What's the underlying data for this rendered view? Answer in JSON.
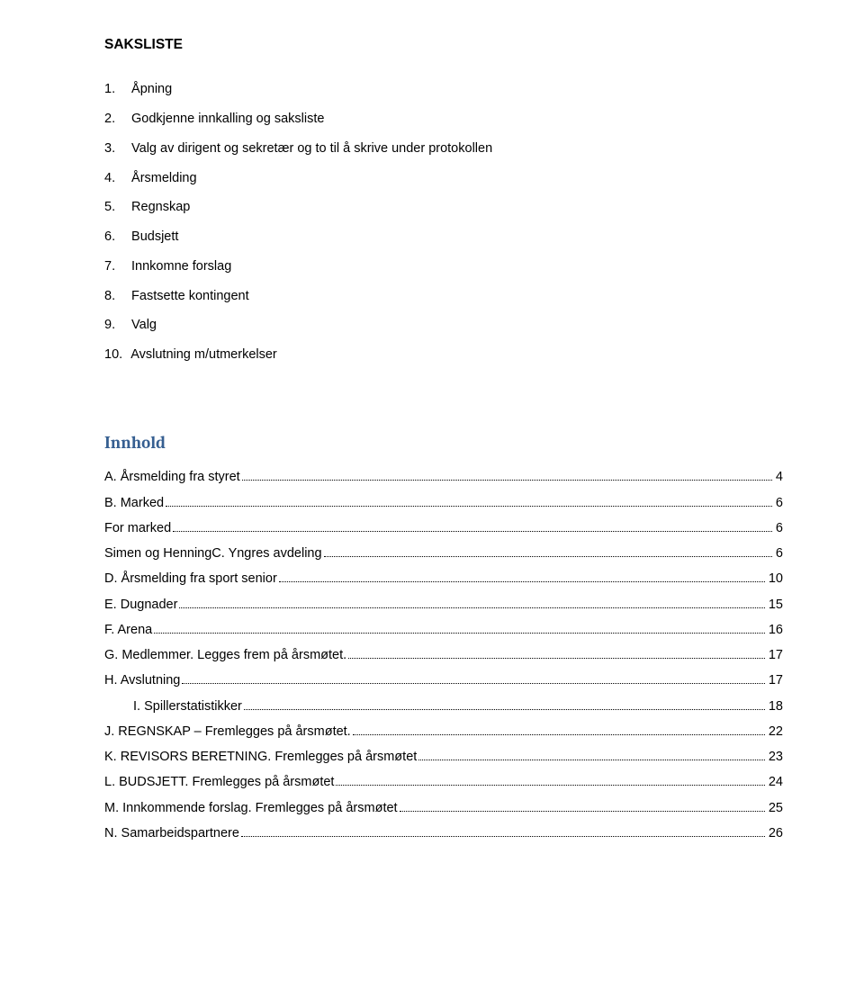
{
  "heading": "SAKSLISTE",
  "agenda": [
    {
      "num": "1.",
      "text": "Åpning"
    },
    {
      "num": "2.",
      "text": "Godkjenne innkalling og saksliste"
    },
    {
      "num": "3.",
      "text": "Valg av dirigent og sekretær og to til å skrive under protokollen"
    },
    {
      "num": "4.",
      "text": "Årsmelding"
    },
    {
      "num": "5.",
      "text": "Regnskap"
    },
    {
      "num": "6.",
      "text": "Budsjett"
    },
    {
      "num": "7.",
      "text": "Innkomne forslag"
    },
    {
      "num": "8.",
      "text": "Fastsette kontingent"
    },
    {
      "num": "9.",
      "text": "Valg"
    },
    {
      "num": "10.",
      "text": "Avslutning m/utmerkelser"
    }
  ],
  "innhold_title": "Innhold",
  "toc": [
    {
      "label": "A. Årsmelding fra styret",
      "page": "4",
      "indent": false
    },
    {
      "label": "B. Marked",
      "page": "6",
      "indent": false
    },
    {
      "label": "For marked",
      "page": "6",
      "indent": false
    },
    {
      "label": "Simen og HenningC. Yngres avdeling",
      "page": "6",
      "indent": false
    },
    {
      "label": "D. Årsmelding fra sport senior",
      "page": "10",
      "indent": false
    },
    {
      "label": "E. Dugnader",
      "page": "15",
      "indent": false
    },
    {
      "label": "F. Arena",
      "page": "16",
      "indent": false
    },
    {
      "label": "G. Medlemmer. Legges frem på årsmøtet.",
      "page": "17",
      "indent": false
    },
    {
      "label": "H. Avslutning",
      "page": "17",
      "indent": false
    },
    {
      "label": "I.    Spillerstatistikker",
      "page": "18",
      "indent": true
    },
    {
      "label": "J. REGNSKAP – Fremlegges på årsmøtet.",
      "page": "22",
      "indent": false
    },
    {
      "label": "K. REVISORS BERETNING. Fremlegges på årsmøtet",
      "page": "23",
      "indent": false
    },
    {
      "label": "L. BUDSJETT. Fremlegges på årsmøtet",
      "page": "24",
      "indent": false
    },
    {
      "label": "M. Innkommende forslag. Fremlegges på årsmøtet",
      "page": "25",
      "indent": false
    },
    {
      "label": "N. Samarbeidspartnere",
      "page": "26",
      "indent": false
    }
  ]
}
